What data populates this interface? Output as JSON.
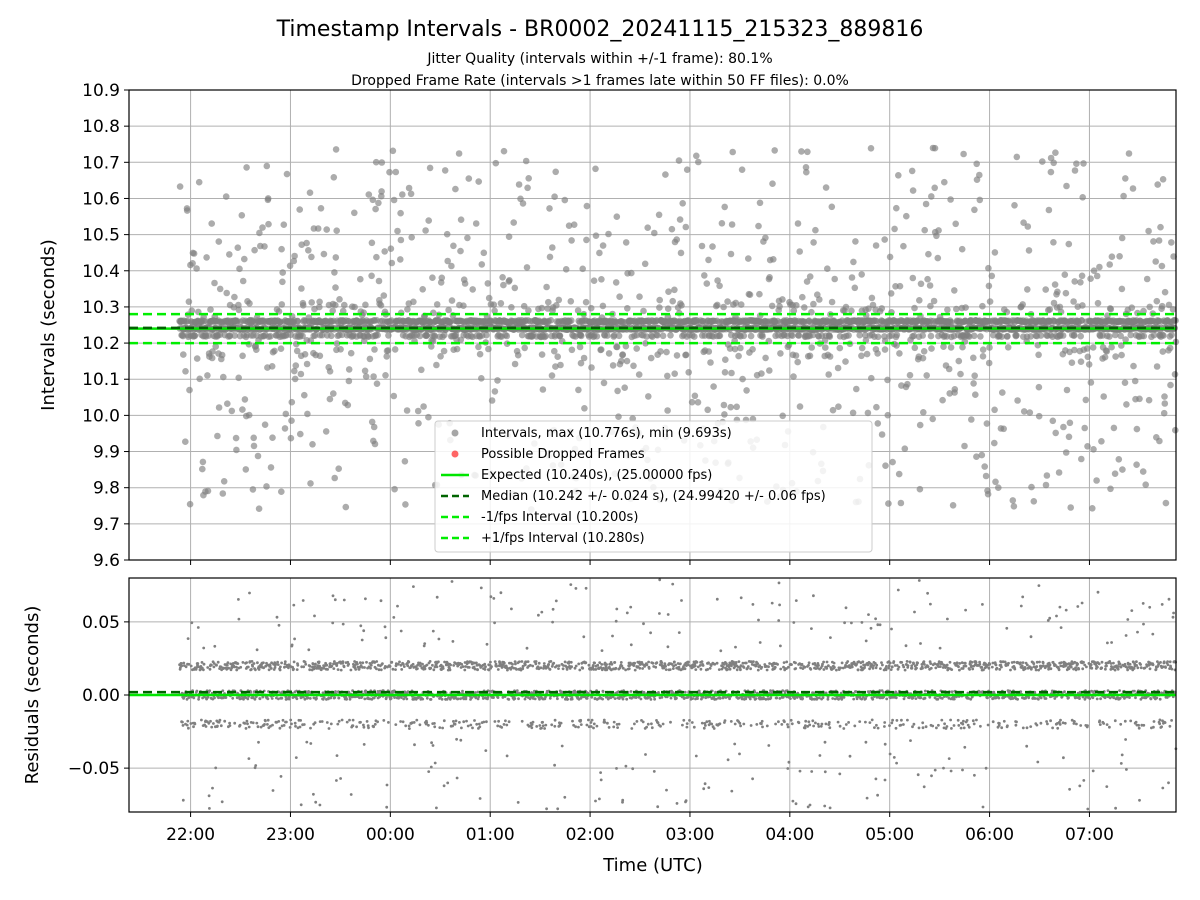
{
  "chart_data": {
    "type": "scatter",
    "title": "Timestamp Intervals - BR0002_20241115_215323_889816",
    "subtitle_lines": [
      "Jitter Quality (intervals within +/-1 frame): 80.1%",
      "Dropped Frame Rate (intervals >1 frames late within 50 FF files): 0.0%"
    ],
    "xlabel": "Time (UTC)",
    "x_range": [
      "21:23",
      "07:52"
    ],
    "x_ticks": [
      "22:00",
      "23:00",
      "00:00",
      "01:00",
      "02:00",
      "03:00",
      "04:00",
      "05:00",
      "06:00",
      "07:00"
    ],
    "panels": [
      {
        "ylabel": "Intervals (seconds)",
        "ylim": [
          9.6,
          10.9
        ],
        "y_ticks": [
          "10.9",
          "10.8",
          "10.7",
          "10.6",
          "10.5",
          "10.4",
          "10.3",
          "10.2",
          "10.1",
          "10.0",
          "9.9",
          "9.8",
          "9.7",
          "9.6"
        ],
        "grid": true,
        "series": [
          {
            "name": "Intervals, max (10.776s), min (9.693s)",
            "color": "#808080",
            "max": 10.776,
            "min": 9.693
          },
          {
            "name": "Possible Dropped Frames",
            "color": "#ff0000"
          },
          {
            "name": "Expected (10.240s), (25.00000 fps)",
            "color": "#00e600",
            "value": 10.24,
            "style": "solid"
          },
          {
            "name": "Median (10.242 +/- 0.024 s), (24.99420 +/- 0.06 fps)",
            "color": "#006400",
            "value": 10.242,
            "style": "dashed"
          },
          {
            "name": "-1/fps Interval (10.200s)",
            "color": "#00ee00",
            "value": 10.2,
            "style": "dashed"
          },
          {
            "name": "+1/fps Interval (10.280s)",
            "color": "#00ee00",
            "value": 10.28,
            "style": "dashed"
          }
        ],
        "legend_position": "lower-center"
      },
      {
        "ylabel": "Residuals (seconds)",
        "ylim": [
          -0.08,
          0.08
        ],
        "y_ticks": [
          "0.05",
          "0.00",
          "−0.05"
        ],
        "grid": true,
        "reference_lines": [
          {
            "value": 0.0,
            "color": "#00e600",
            "style": "solid"
          },
          {
            "value": 0.002,
            "color": "#006400",
            "style": "dashed"
          }
        ]
      }
    ]
  }
}
